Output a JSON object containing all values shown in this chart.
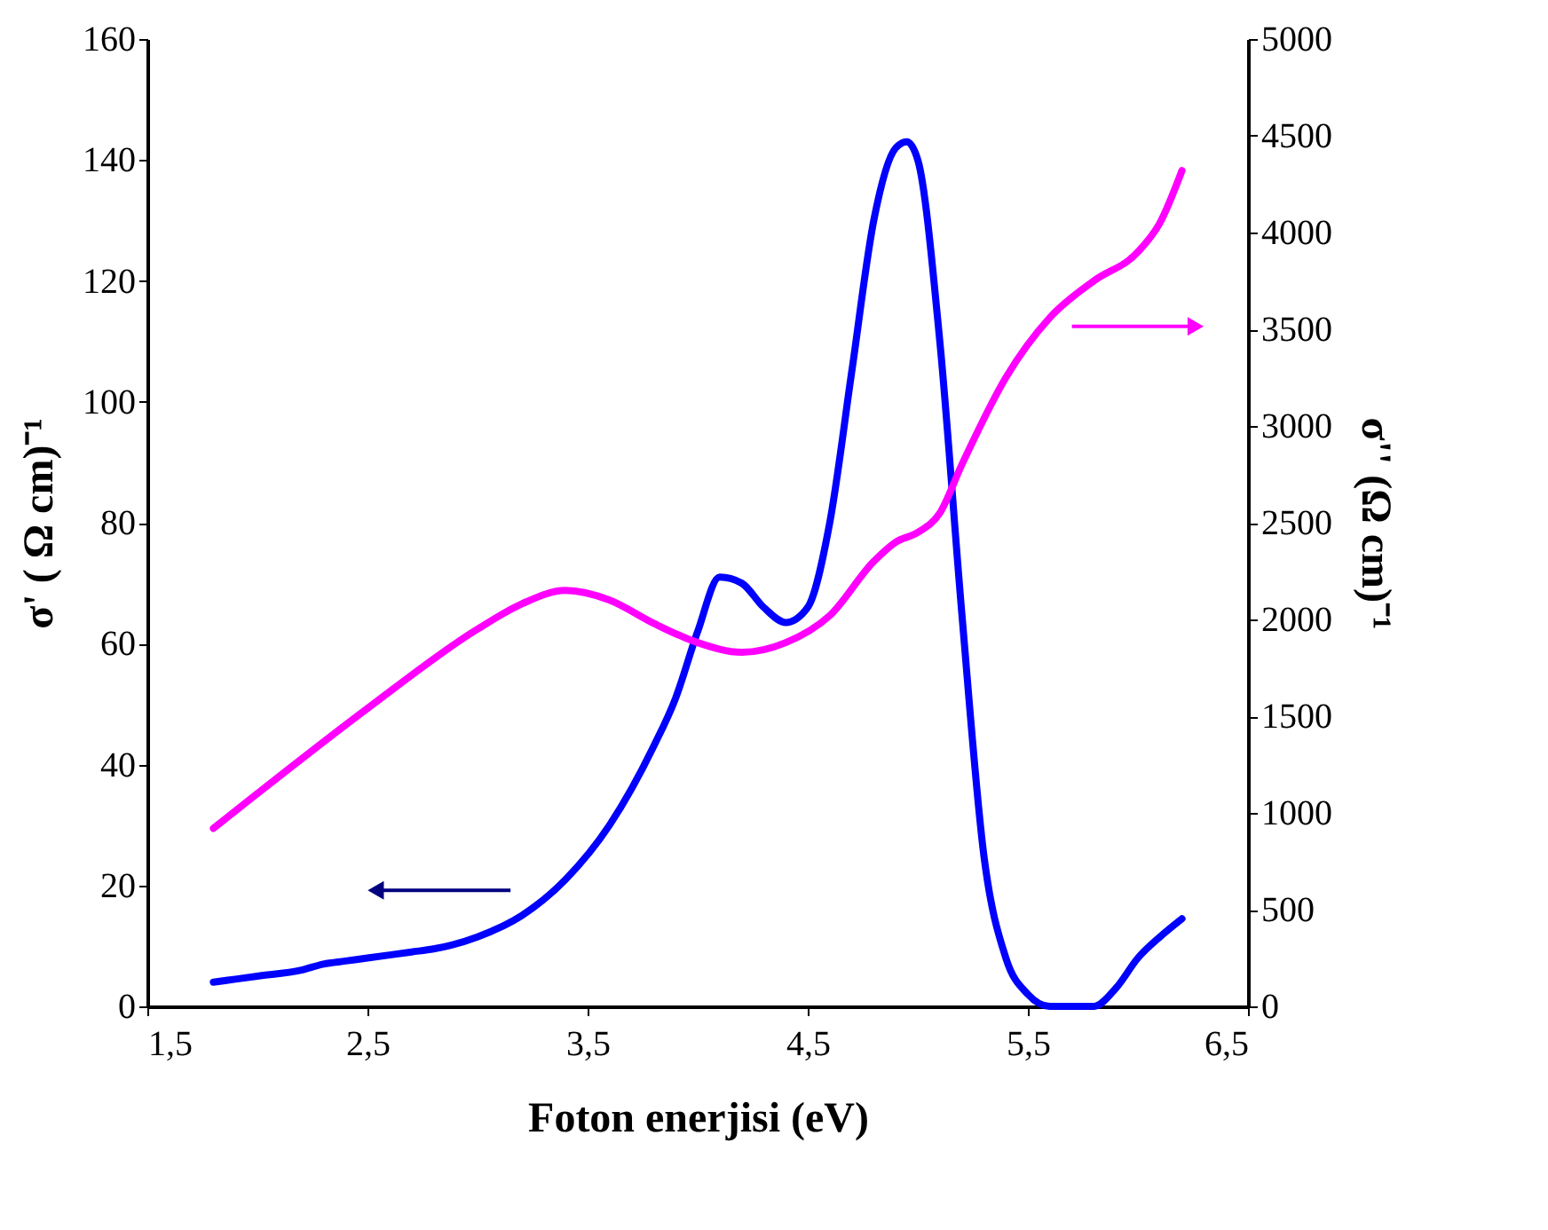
{
  "chart_data": {
    "type": "line",
    "xlabel": "Foton enerjisi (eV)",
    "ylabel": "σ' ( Ω cm)⁻¹",
    "y2label": "σ'' (Ω cm)⁻¹",
    "xlim": [
      1.5,
      6.5
    ],
    "xticks": [
      {
        "value": 1.5,
        "label": "1,5"
      },
      {
        "value": 2.5,
        "label": "2,5"
      },
      {
        "value": 3.5,
        "label": "3,5"
      },
      {
        "value": 4.5,
        "label": "4,5"
      },
      {
        "value": 5.5,
        "label": "5,5"
      },
      {
        "value": 6.5,
        "label": "6,5"
      }
    ],
    "ylim": [
      0,
      160
    ],
    "yticks": [
      0,
      20,
      40,
      60,
      80,
      100,
      120,
      140,
      160
    ],
    "y2lim": [
      0,
      5000
    ],
    "y2ticks": [
      0,
      500,
      1000,
      1500,
      2000,
      2500,
      3000,
      3500,
      4000,
      4500,
      5000
    ],
    "grid": false,
    "marker": "none",
    "line_style": "solid",
    "series": [
      {
        "color": "#0000ff",
        "x": [
          1.8,
          2.0,
          2.2,
          2.3,
          2.4,
          2.5,
          2.7,
          2.8,
          3.0,
          3.2,
          3.4,
          3.6,
          3.8,
          3.9,
          4.0,
          4.1,
          4.2,
          4.3,
          4.4,
          4.5,
          4.6,
          4.7,
          4.8,
          4.9,
          4.95,
          5.0,
          5.1,
          5.2,
          5.3,
          5.4,
          5.5,
          5.6,
          5.7,
          5.8,
          5.9,
          6.0,
          6.1,
          6.2
        ],
        "values": [
          4,
          5,
          6,
          7,
          7.5,
          8,
          9,
          9.5,
          11.5,
          15,
          21,
          30,
          43,
          51,
          62,
          71,
          70,
          66,
          63.5,
          66,
          80,
          105,
          130,
          142,
          143,
          140,
          110,
          65,
          25,
          8,
          2,
          0,
          0,
          0,
          3,
          8,
          11.5,
          14.5
        ]
      },
      {
        "color": "#ff00ff",
        "axis": "y2",
        "x": [
          1.8,
          2.0,
          2.5,
          3.0,
          3.2,
          3.4,
          3.6,
          3.8,
          4.0,
          4.2,
          4.4,
          4.6,
          4.8,
          4.9,
          5.0,
          5.1,
          5.2,
          5.4,
          5.6,
          5.8,
          6.0,
          6.1,
          6.2
        ],
        "values": [
          920,
          1100,
          1540,
          1950,
          2080,
          2150,
          2100,
          1980,
          1880,
          1830,
          1880,
          2020,
          2300,
          2400,
          2450,
          2550,
          2800,
          3250,
          3560,
          3750,
          3900,
          4050,
          4320
        ]
      }
    ]
  }
}
